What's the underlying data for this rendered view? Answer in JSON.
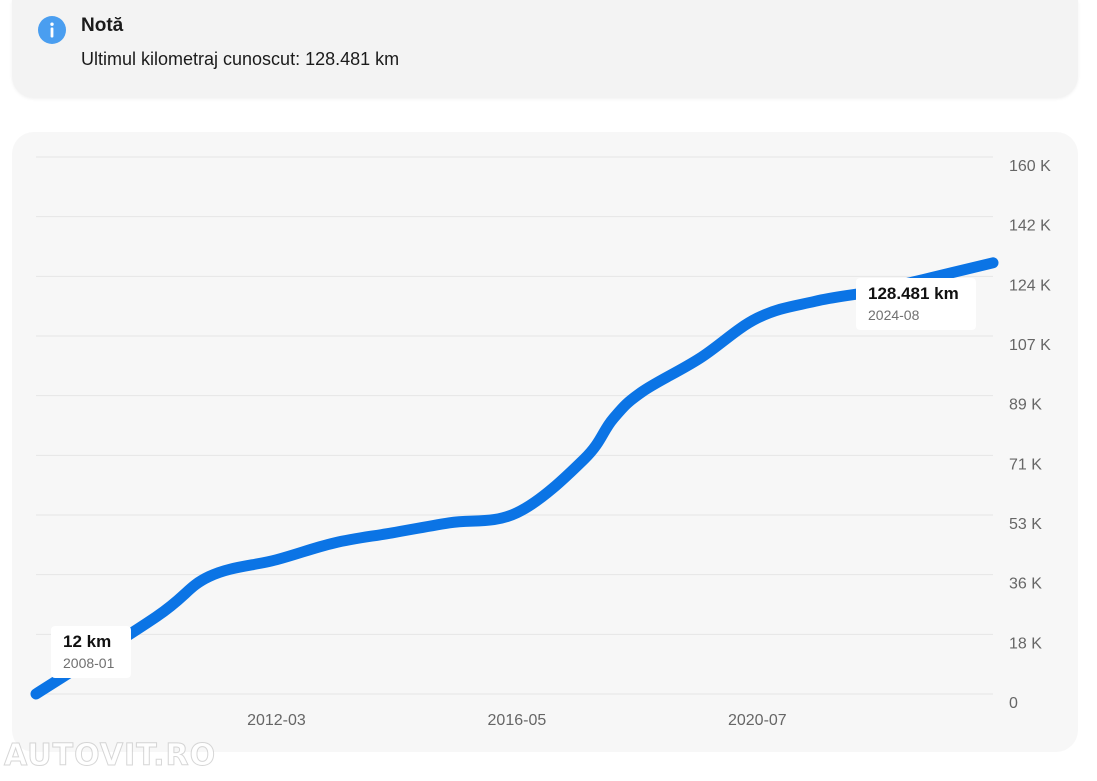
{
  "note": {
    "title": "Notă",
    "text": "Ultimul kilometraj cunoscut: 128.481 km"
  },
  "colors": {
    "line": "#0b74e5",
    "info_icon": "#4a9ef0",
    "grid": "#e6e6e6",
    "axis_text": "#666666"
  },
  "watermark": "AUTOVIT.RO",
  "chart_data": {
    "type": "line",
    "title": "",
    "xlabel": "",
    "ylabel": "",
    "x_ticks": [
      "2012-03",
      "2016-05",
      "2020-07"
    ],
    "y_ticks": [
      "160 K",
      "142 K",
      "124 K",
      "107 K",
      "89 K",
      "71 K",
      "53 K",
      "36 K",
      "18 K",
      "0"
    ],
    "ylim": [
      0,
      160000
    ],
    "grid": true,
    "series": [
      {
        "x": [
          "2008-01",
          "2010-02",
          "2011-01",
          "2012-03",
          "2013-03",
          "2014-03",
          "2015-03",
          "2016-05",
          "2017-07",
          "2018-01",
          "2018-07",
          "2019-07",
          "2020-07",
          "2021-07",
          "2022-07",
          "2023-07",
          "2024-08"
        ],
        "values": [
          12,
          23000,
          35000,
          40000,
          45000,
          48000,
          51000,
          54000,
          70000,
          82000,
          90000,
          100000,
          112000,
          117000,
          120000,
          124000,
          128481
        ]
      }
    ],
    "annotations": [
      {
        "value_label": "12 km",
        "date_label": "2008-01"
      },
      {
        "value_label": "128.481 km",
        "date_label": "2024-08"
      }
    ]
  }
}
